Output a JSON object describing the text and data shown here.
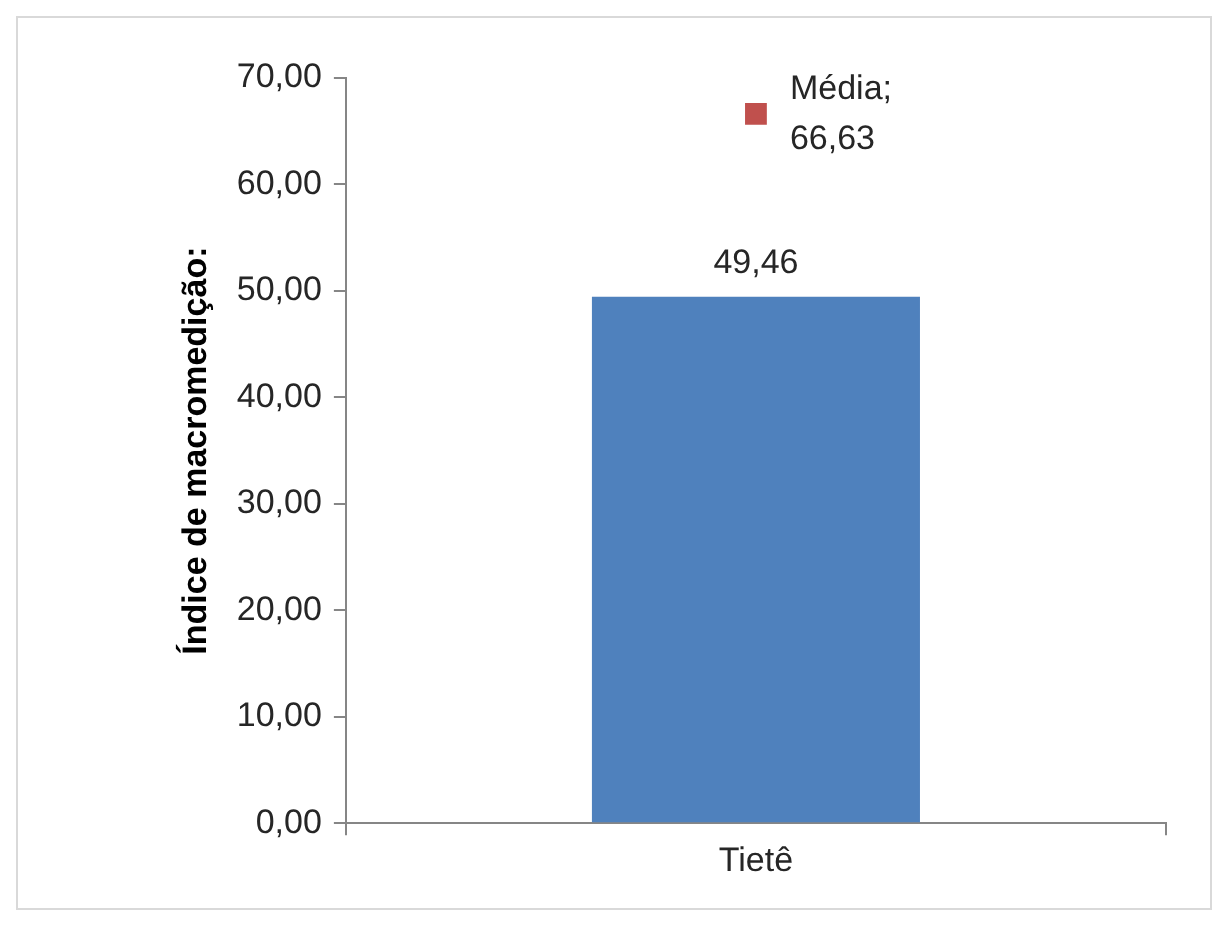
{
  "chart_data": {
    "type": "bar",
    "ylabel": "Índice de macromedição:",
    "categories": [
      "Tietê"
    ],
    "series": [
      {
        "color": "#4f81bd",
        "values": [
          49.46
        ],
        "value_labels": [
          "49,46"
        ]
      },
      {
        "type": "scatter",
        "x": [
          "Tietê"
        ],
        "color": "#c0504d",
        "values": [
          66.63
        ],
        "value_labels": [
          "Média; 66,63"
        ],
        "marker": "square"
      }
    ],
    "ylim": [
      0,
      70
    ],
    "yticks": [
      {
        "value": 0,
        "label": "0,00"
      },
      {
        "value": 10,
        "label": "10,00"
      },
      {
        "value": 20,
        "label": "20,00"
      },
      {
        "value": 30,
        "label": "30,00"
      },
      {
        "value": 40,
        "label": "40,00"
      },
      {
        "value": 50,
        "label": "50,00"
      },
      {
        "value": 60,
        "label": "60,00"
      },
      {
        "value": 70,
        "label": "70,00"
      }
    ],
    "grid": false,
    "legend": false
  }
}
